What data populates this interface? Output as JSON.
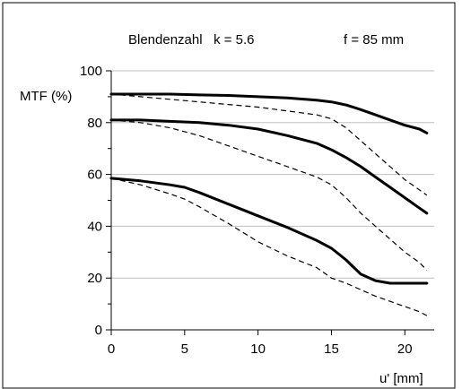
{
  "chart_data": {
    "type": "line",
    "title": "Blendenzahl   k = 5.6",
    "subtitle": "f = 85 mm",
    "xlabel": "u' [mm]",
    "ylabel": "MTF (%)",
    "xlim": [
      0,
      22
    ],
    "ylim": [
      0,
      100
    ],
    "x_ticks": [
      0,
      5,
      10,
      15,
      20
    ],
    "y_ticks": [
      0,
      20,
      40,
      60,
      80,
      100
    ],
    "grid": "horizontal",
    "series": [
      {
        "style": "solid",
        "x": [
          0,
          2,
          4,
          6,
          8,
          10,
          12,
          14,
          15,
          16,
          17,
          18,
          19,
          20,
          21,
          21.5
        ],
        "y": [
          91,
          91,
          91,
          90.7,
          90.5,
          90,
          89.5,
          88.7,
          88,
          86.8,
          85,
          83,
          81,
          79,
          77.5,
          76
        ]
      },
      {
        "style": "dashed",
        "x": [
          0,
          2,
          4,
          6,
          8,
          10,
          12,
          14,
          15,
          16,
          17,
          18,
          19,
          20,
          21,
          21.5
        ],
        "y": [
          91,
          90,
          89,
          88,
          87,
          86,
          84.5,
          83,
          81.5,
          78,
          73,
          68,
          63,
          58,
          54,
          52
        ]
      },
      {
        "style": "solid",
        "x": [
          0,
          2,
          4,
          6,
          8,
          10,
          12,
          14,
          15,
          16,
          17,
          18,
          19,
          20,
          21,
          21.5
        ],
        "y": [
          81,
          81,
          80.5,
          80,
          79,
          77.5,
          75,
          72,
          69.5,
          66.5,
          63,
          59,
          55,
          51,
          47,
          45
        ]
      },
      {
        "style": "dashed",
        "x": [
          0,
          2,
          4,
          6,
          8,
          10,
          12,
          14,
          15,
          16,
          17,
          18,
          19,
          20,
          21,
          21.5
        ],
        "y": [
          81,
          80,
          78,
          75,
          71,
          67,
          63,
          59,
          56,
          51,
          45,
          40,
          35,
          30,
          26,
          23
        ]
      },
      {
        "style": "solid",
        "x": [
          0,
          2,
          4,
          5,
          6,
          8,
          10,
          12,
          14,
          15,
          16,
          17,
          18,
          19,
          20,
          21,
          21.5
        ],
        "y": [
          58.5,
          57.5,
          56,
          55,
          53,
          48.5,
          44,
          39.5,
          34.5,
          31.5,
          27,
          21.5,
          19,
          18,
          18,
          18,
          18
        ]
      },
      {
        "style": "dashed",
        "x": [
          0,
          2,
          4,
          5,
          6,
          8,
          10,
          12,
          14,
          15,
          16,
          17,
          18,
          19,
          20,
          21,
          21.5
        ],
        "y": [
          58.5,
          56,
          52.5,
          50.5,
          47.5,
          41,
          34,
          28.5,
          24,
          20,
          18,
          15.5,
          13,
          11,
          9,
          7,
          5.5
        ]
      }
    ]
  }
}
